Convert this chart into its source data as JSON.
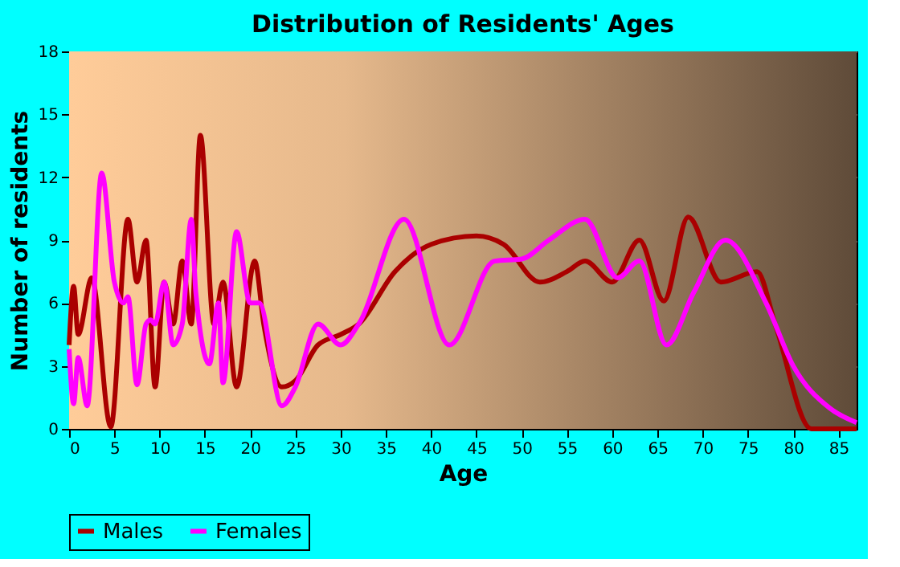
{
  "chart_data": {
    "type": "line",
    "title": "Distribution of Residents' Ages",
    "xlabel": "Age",
    "ylabel": "Number of residents",
    "xlim": [
      0,
      87
    ],
    "xticks": [
      0,
      5,
      10,
      15,
      20,
      25,
      30,
      35,
      40,
      45,
      50,
      55,
      60,
      65,
      70,
      75,
      80,
      85
    ],
    "ylim": [
      0,
      18
    ],
    "yticks": [
      0,
      3,
      6,
      9,
      12,
      15,
      18
    ],
    "grid": true,
    "legend": "bottom",
    "series": [
      {
        "name": "Males",
        "color": "#aa0000",
        "x": [
          0,
          0.5,
          1,
          2.5,
          4.6,
          6.5,
          7.5,
          8.5,
          9.5,
          10.5,
          11.5,
          12.5,
          13.5,
          14.5,
          16,
          17,
          18.5,
          20.5,
          21.5,
          23.5,
          25,
          27.5,
          30,
          32,
          36,
          40,
          45,
          48,
          52,
          55,
          57,
          60,
          63,
          65.7,
          68.4,
          72,
          76,
          78,
          82,
          87
        ],
        "values": [
          4,
          6.8,
          4.5,
          7.2,
          0.1,
          10,
          7,
          9,
          2,
          7,
          5,
          8,
          5,
          14,
          5,
          7,
          2,
          8,
          5,
          2,
          2.3,
          4,
          4.5,
          5,
          7.5,
          8.8,
          9.2,
          8.8,
          7,
          7.5,
          8,
          7,
          9,
          6.1,
          10.1,
          7,
          7.5,
          5,
          0,
          0
        ]
      },
      {
        "name": "Females",
        "color": "#ff00ff",
        "x": [
          0,
          0.5,
          1,
          2,
          3.6,
          5,
          6,
          6.5,
          7.5,
          8.5,
          9,
          9.5,
          10.5,
          11.5,
          12.5,
          13.5,
          14,
          15.5,
          16.5,
          17,
          18.5,
          20,
          21,
          23.5,
          25,
          27.5,
          30,
          32,
          37,
          42,
          47,
          50,
          53,
          57,
          60.6,
          63,
          66,
          69,
          72.5,
          77,
          80,
          84,
          87
        ],
        "values": [
          3.8,
          1.2,
          3.4,
          1.1,
          12.2,
          7,
          6,
          6.3,
          2.1,
          5,
          5.2,
          5,
          7,
          4,
          5,
          10,
          6.5,
          3.1,
          6,
          2.2,
          9.4,
          6,
          6,
          1.1,
          2,
          5,
          4,
          5,
          10,
          4,
          8,
          8.1,
          9,
          10,
          7.2,
          8,
          4,
          6.5,
          9,
          6,
          3,
          1,
          0.3
        ]
      }
    ]
  }
}
